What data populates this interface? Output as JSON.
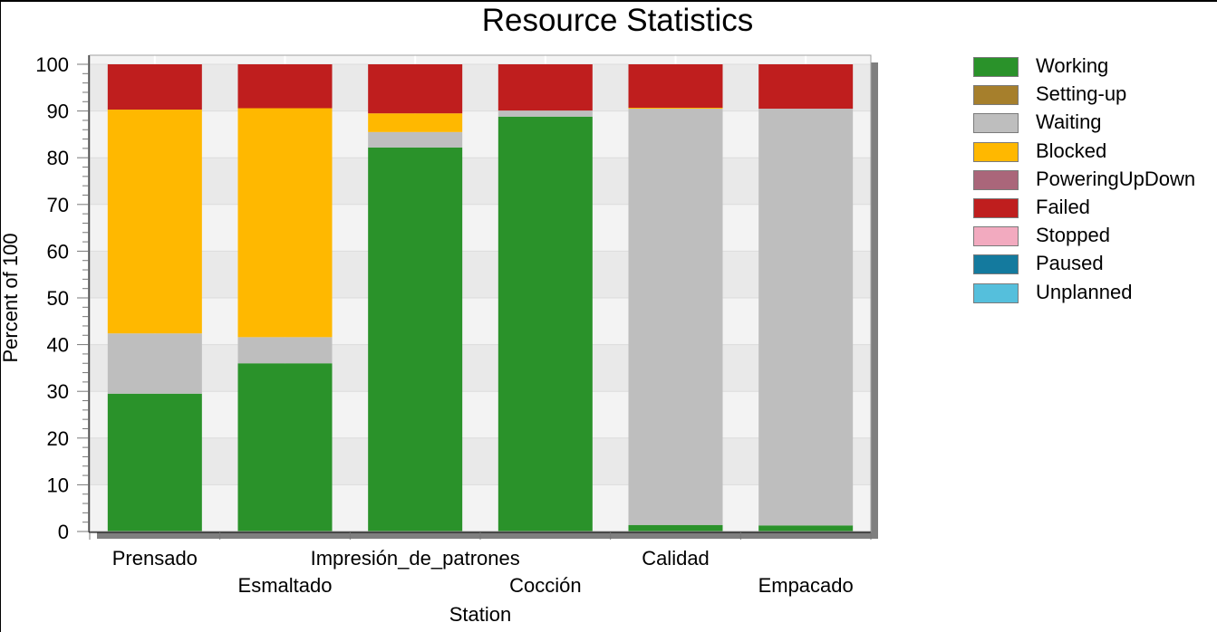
{
  "chart_data": {
    "type": "bar",
    "stacked": true,
    "title": "Resource Statistics",
    "xlabel": "Station",
    "ylabel": "Percent of 100",
    "ylim": [
      0,
      100
    ],
    "yticks": [
      0,
      10,
      20,
      30,
      40,
      50,
      60,
      70,
      80,
      90,
      100
    ],
    "grid": true,
    "legend_position": "right",
    "categories": [
      "Prensado",
      "Esmaltado",
      "Impresión_de_patrones",
      "Cocción",
      "Calidad",
      "Empacado"
    ],
    "series": [
      {
        "name": "Working",
        "color": "#2a922a",
        "values": [
          29.5,
          36.0,
          82.2,
          88.8,
          1.4,
          1.3
        ]
      },
      {
        "name": "Setting-up",
        "color": "#a67f2c",
        "values": [
          0,
          0,
          0,
          0,
          0,
          0
        ]
      },
      {
        "name": "Waiting",
        "color": "#bebebe",
        "values": [
          12.9,
          5.6,
          3.3,
          1.3,
          89.1,
          89.2
        ]
      },
      {
        "name": "Blocked",
        "color": "#ffb800",
        "values": [
          47.9,
          49.0,
          4.0,
          0,
          0.2,
          0
        ]
      },
      {
        "name": "PoweringUpDown",
        "color": "#aa667a",
        "values": [
          0,
          0,
          0,
          0,
          0,
          0
        ]
      },
      {
        "name": "Failed",
        "color": "#bf1e1e",
        "values": [
          9.7,
          9.4,
          10.5,
          9.9,
          9.3,
          9.5
        ]
      },
      {
        "name": "Stopped",
        "color": "#f2aabf",
        "values": [
          0,
          0,
          0,
          0,
          0,
          0
        ]
      },
      {
        "name": "Paused",
        "color": "#147a9e",
        "values": [
          0,
          0,
          0,
          0,
          0,
          0
        ]
      },
      {
        "name": "Unplanned",
        "color": "#55bfdc",
        "values": [
          0,
          0,
          0,
          0,
          0,
          0
        ]
      }
    ]
  }
}
